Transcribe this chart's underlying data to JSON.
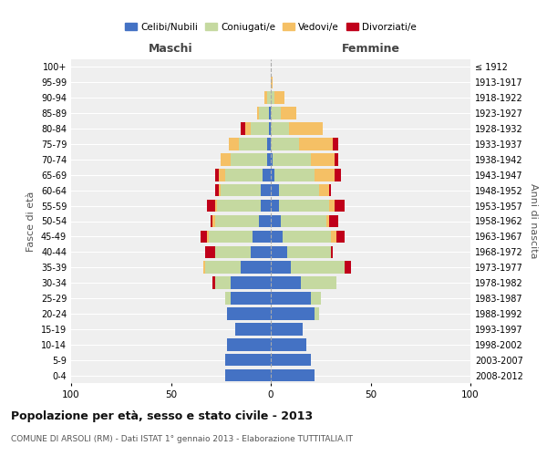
{
  "age_groups": [
    "0-4",
    "5-9",
    "10-14",
    "15-19",
    "20-24",
    "25-29",
    "30-34",
    "35-39",
    "40-44",
    "45-49",
    "50-54",
    "55-59",
    "60-64",
    "65-69",
    "70-74",
    "75-79",
    "80-84",
    "85-89",
    "90-94",
    "95-99",
    "100+"
  ],
  "birth_years": [
    "2008-2012",
    "2003-2007",
    "1998-2002",
    "1993-1997",
    "1988-1992",
    "1983-1987",
    "1978-1982",
    "1973-1977",
    "1968-1972",
    "1963-1967",
    "1958-1962",
    "1953-1957",
    "1948-1952",
    "1943-1947",
    "1938-1942",
    "1933-1937",
    "1928-1932",
    "1923-1927",
    "1918-1922",
    "1913-1917",
    "≤ 1912"
  ],
  "maschi": {
    "celibi": [
      23,
      23,
      22,
      18,
      22,
      20,
      20,
      15,
      10,
      9,
      6,
      5,
      5,
      4,
      2,
      2,
      1,
      1,
      0,
      0,
      0
    ],
    "coniugati": [
      0,
      0,
      0,
      0,
      0,
      3,
      8,
      18,
      18,
      22,
      22,
      22,
      20,
      19,
      18,
      14,
      9,
      5,
      2,
      0,
      0
    ],
    "vedovi": [
      0,
      0,
      0,
      0,
      0,
      0,
      0,
      1,
      0,
      1,
      1,
      1,
      1,
      3,
      5,
      5,
      3,
      1,
      1,
      0,
      0
    ],
    "divorziati": [
      0,
      0,
      0,
      0,
      0,
      0,
      1,
      0,
      5,
      3,
      1,
      4,
      2,
      2,
      0,
      0,
      2,
      0,
      0,
      0,
      0
    ]
  },
  "femmine": {
    "nubili": [
      22,
      20,
      18,
      16,
      22,
      20,
      15,
      10,
      8,
      6,
      5,
      4,
      4,
      2,
      1,
      0,
      0,
      0,
      0,
      0,
      0
    ],
    "coniugate": [
      0,
      0,
      0,
      0,
      2,
      5,
      18,
      27,
      22,
      24,
      23,
      25,
      20,
      20,
      19,
      14,
      9,
      5,
      2,
      0,
      0
    ],
    "vedove": [
      0,
      0,
      0,
      0,
      0,
      0,
      0,
      0,
      0,
      3,
      1,
      3,
      5,
      10,
      12,
      17,
      17,
      8,
      5,
      1,
      0
    ],
    "divorziate": [
      0,
      0,
      0,
      0,
      0,
      0,
      0,
      3,
      1,
      4,
      5,
      5,
      1,
      3,
      2,
      3,
      0,
      0,
      0,
      0,
      0
    ]
  },
  "colors": {
    "celibi": "#4472c4",
    "coniugati": "#c5d9a0",
    "vedovi": "#f5c065",
    "divorziati": "#c0001a"
  },
  "title": "Popolazione per età, sesso e stato civile - 2013",
  "subtitle": "COMUNE DI ARSOLI (RM) - Dati ISTAT 1° gennaio 2013 - Elaborazione TUTTITALIA.IT",
  "xlabel_left": "Maschi",
  "xlabel_right": "Femmine",
  "ylabel_left": "Fasce di età",
  "ylabel_right": "Anni di nascita",
  "xlim": 100,
  "background_color": "#ffffff",
  "plot_bg_color": "#efefef",
  "grid_color": "#ffffff"
}
